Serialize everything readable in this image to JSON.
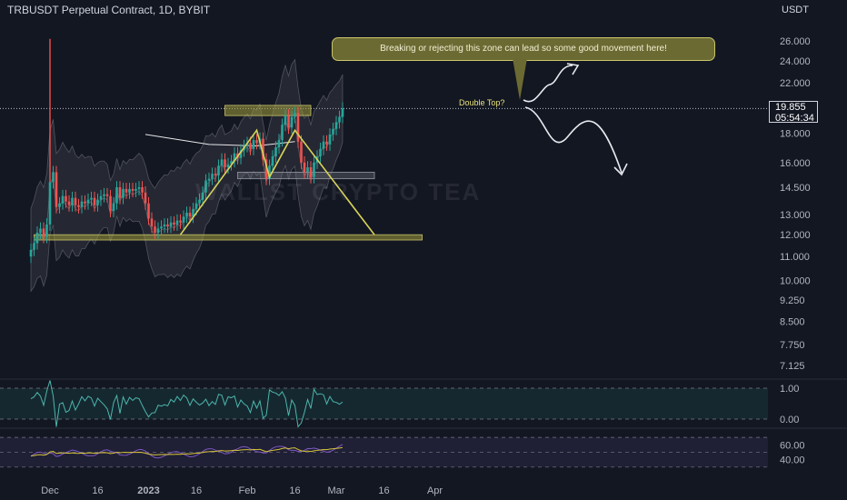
{
  "header": {
    "symbol_line": "TRBUSDT Perpetual Contract, 1D, BYBIT",
    "currency": "USDT"
  },
  "watermark": "WALLST CRYPTO TEA",
  "annotations": {
    "callout_text": "Breaking or rejecting this zone can lead so some good movement here!",
    "double_top_label": "Double Top?"
  },
  "price_tag": {
    "price": "19.855",
    "countdown": "05:54:34"
  },
  "colors": {
    "up": "#26a69a",
    "down": "#ef5350",
    "zone": "#6b6a33",
    "pattern": "#d8d45a",
    "rsi": "#4db6ac",
    "stoch": "#7e57c2",
    "stoch_signal": "#d6c43a"
  },
  "chart_data": {
    "type": "candlestick",
    "price_scale": "log",
    "y_ticks": [
      26.0,
      24.0,
      22.0,
      19.855,
      18.0,
      16.0,
      14.5,
      13.0,
      12.0,
      11.0,
      10.0,
      9.25,
      8.5,
      7.75,
      7.125
    ],
    "y_tick_labels": [
      "26.000",
      "24.000",
      "22.000",
      "18.000",
      "16.000",
      "14.500",
      "13.000",
      "12.000",
      "11.000",
      "10.000",
      "9.250",
      "8.500",
      "7.750",
      "7.125"
    ],
    "x_labels": [
      {
        "label": "Dec",
        "date": "2022-12-01"
      },
      {
        "label": "16",
        "date": "2022-12-16"
      },
      {
        "label": "2023",
        "date": "2023-01-01"
      },
      {
        "label": "16",
        "date": "2023-01-16"
      },
      {
        "label": "Feb",
        "date": "2023-02-01"
      },
      {
        "label": "16",
        "date": "2023-02-16"
      },
      {
        "label": "Mar",
        "date": "2023-03-01"
      },
      {
        "label": "16",
        "date": "2023-03-16"
      },
      {
        "label": "Apr",
        "date": "2023-04-01"
      }
    ],
    "first_date": "2022-11-25",
    "closes": [
      11.3,
      11.6,
      12.1,
      12.3,
      11.9,
      12.5,
      14.8,
      15.4,
      13.4,
      13.6,
      14.0,
      13.7,
      13.5,
      13.9,
      13.5,
      13.4,
      13.7,
      13.6,
      13.8,
      13.9,
      13.5,
      13.8,
      14.0,
      14.1,
      14.0,
      13.2,
      13.6,
      14.5,
      13.9,
      14.4,
      14.2,
      14.4,
      14.3,
      14.4,
      14.5,
      14.2,
      13.6,
      12.8,
      12.4,
      12.1,
      12.3,
      12.4,
      12.5,
      12.4,
      12.6,
      12.5,
      12.7,
      12.6,
      12.9,
      13.1,
      12.9,
      13.3,
      13.6,
      13.8,
      14.2,
      14.9,
      15.0,
      15.3,
      15.2,
      15.8,
      16.2,
      15.7,
      15.9,
      16.1,
      16.6,
      16.3,
      16.8,
      17.1,
      17.3,
      16.9,
      17.5,
      17.3,
      17.6,
      16.2,
      15.0,
      15.8,
      16.4,
      17.0,
      17.5,
      18.6,
      19.3,
      18.4,
      19.2,
      19.5,
      17.4,
      16.0,
      15.4,
      15.7,
      15.1,
      16.0,
      16.4,
      16.9,
      17.4,
      17.2,
      17.9,
      18.3,
      18.8,
      19.2,
      19.855
    ],
    "opens": [
      11.0,
      11.3,
      11.6,
      12.1,
      12.3,
      11.9,
      12.5,
      14.8,
      15.4,
      13.4,
      13.6,
      14.0,
      13.7,
      13.5,
      13.9,
      13.5,
      13.4,
      13.7,
      13.6,
      13.8,
      13.9,
      13.5,
      13.8,
      14.0,
      14.1,
      14.0,
      13.2,
      13.6,
      14.5,
      13.9,
      14.4,
      14.2,
      14.4,
      14.3,
      14.4,
      14.5,
      14.2,
      13.6,
      12.8,
      12.4,
      12.1,
      12.3,
      12.4,
      12.5,
      12.4,
      12.6,
      12.5,
      12.7,
      12.6,
      12.9,
      13.1,
      12.9,
      13.3,
      13.6,
      13.8,
      14.2,
      14.9,
      15.0,
      15.3,
      15.2,
      15.8,
      16.2,
      15.7,
      15.9,
      16.1,
      16.6,
      16.3,
      16.8,
      17.1,
      17.3,
      16.9,
      17.5,
      17.3,
      17.6,
      16.2,
      15.0,
      15.8,
      16.4,
      17.0,
      17.5,
      18.6,
      19.3,
      18.4,
      19.2,
      19.5,
      17.4,
      16.0,
      15.4,
      15.7,
      15.1,
      16.0,
      16.4,
      16.9,
      17.4,
      17.2,
      17.9,
      18.3,
      18.8,
      19.2
    ],
    "notable_high": {
      "date": "2022-12-01",
      "value": 26.2
    },
    "zones": [
      {
        "from": "2023-01-25",
        "to": "2023-02-21",
        "low": 19.3,
        "high": 20.1
      },
      {
        "from": "2023-01-29",
        "to": "2023-03-13",
        "low": 15.0,
        "high": 15.4
      },
      {
        "from": "2022-11-26",
        "to": "2023-03-28",
        "low": 11.75,
        "high": 12.0
      }
    ],
    "pattern_lines": [
      [
        [
          "2023-01-11",
          12.0
        ],
        [
          "2023-02-04",
          18.2
        ],
        [
          "2023-02-08",
          15.1
        ],
        [
          "2023-02-16",
          18.2
        ],
        [
          "2023-03-13",
          12.0
        ]
      ]
    ],
    "ma_long": [
      [
        "2022-12-31",
        17.9
      ],
      [
        "2023-01-20",
        17.2
      ],
      [
        "2023-02-04",
        17.1
      ],
      [
        "2023-02-16",
        17.4
      ]
    ],
    "rsi": {
      "levels": [
        1.0,
        0.0
      ],
      "tick_labels": [
        "1.00",
        "0.00"
      ]
    },
    "stoch": {
      "levels": [
        60.0,
        40.0
      ],
      "tick_labels": [
        "60.00",
        "40.00"
      ]
    }
  }
}
